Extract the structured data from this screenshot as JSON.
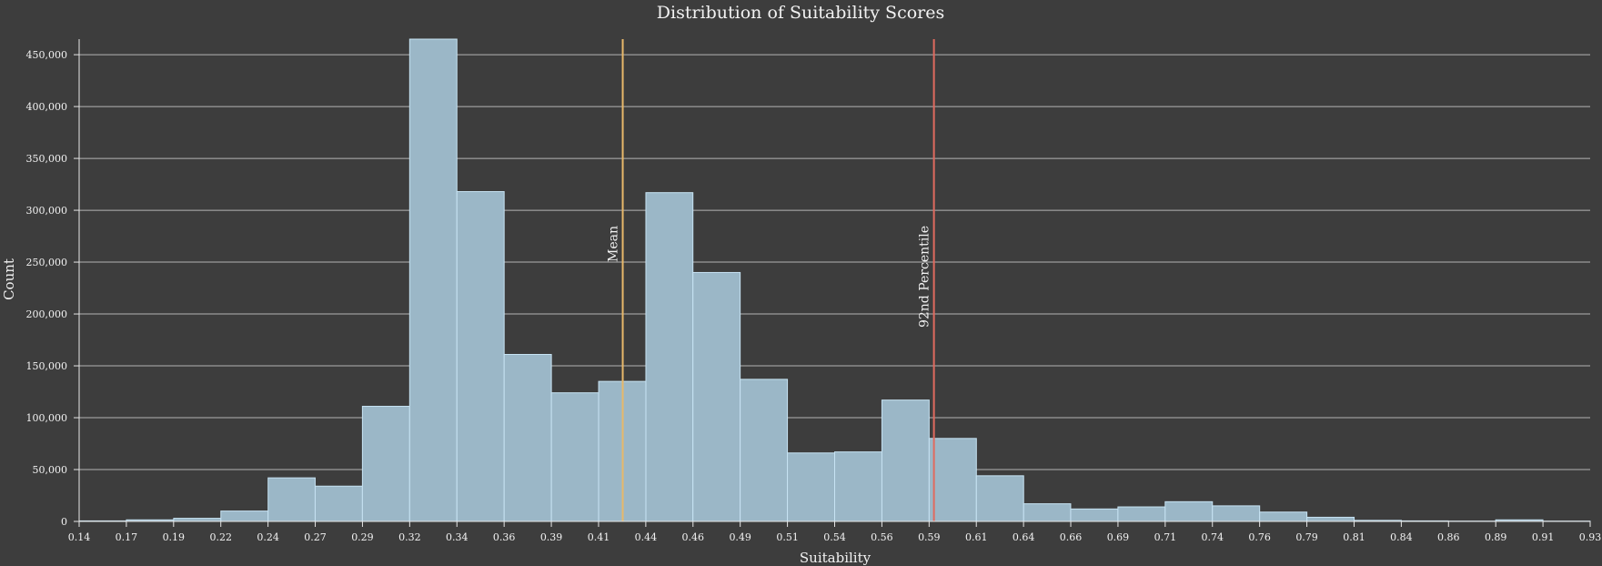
{
  "chart_data": {
    "type": "bar",
    "title": "Distribution of Suitability Scores",
    "xlabel": "Suitability",
    "ylabel": "Count",
    "xlim": [
      0.14,
      0.93
    ],
    "ylim": [
      0,
      465000
    ],
    "grid": true,
    "x_ticks": [
      "0.14",
      "0.17",
      "0.19",
      "0.22",
      "0.24",
      "0.27",
      "0.29",
      "0.32",
      "0.34",
      "0.36",
      "0.39",
      "0.41",
      "0.44",
      "0.46",
      "0.49",
      "0.51",
      "0.54",
      "0.56",
      "0.59",
      "0.61",
      "0.64",
      "0.66",
      "0.69",
      "0.71",
      "0.74",
      "0.76",
      "0.79",
      "0.81",
      "0.84",
      "0.86",
      "0.89",
      "0.91",
      "0.93"
    ],
    "y_ticks": [
      {
        "value": 0,
        "label": "0"
      },
      {
        "value": 50000,
        "label": "50,000"
      },
      {
        "value": 100000,
        "label": "100,000"
      },
      {
        "value": 150000,
        "label": "150,000"
      },
      {
        "value": 200000,
        "label": "200,000"
      },
      {
        "value": 250000,
        "label": "250,000"
      },
      {
        "value": 300000,
        "label": "300,000"
      },
      {
        "value": 350000,
        "label": "350,000"
      },
      {
        "value": 400000,
        "label": "400,000"
      },
      {
        "value": 450000,
        "label": "450,000"
      }
    ],
    "bins": [
      {
        "x0": 0.14,
        "x1": 0.1647,
        "count": 500
      },
      {
        "x0": 0.1647,
        "x1": 0.1894,
        "count": 1500
      },
      {
        "x0": 0.1894,
        "x1": 0.2141,
        "count": 3000
      },
      {
        "x0": 0.2141,
        "x1": 0.2388,
        "count": 10000
      },
      {
        "x0": 0.2388,
        "x1": 0.2634,
        "count": 42000
      },
      {
        "x0": 0.2634,
        "x1": 0.2881,
        "count": 34000
      },
      {
        "x0": 0.2881,
        "x1": 0.3128,
        "count": 111000
      },
      {
        "x0": 0.3128,
        "x1": 0.3375,
        "count": 465000
      },
      {
        "x0": 0.3375,
        "x1": 0.3622,
        "count": 318000
      },
      {
        "x0": 0.3622,
        "x1": 0.3869,
        "count": 161000
      },
      {
        "x0": 0.3869,
        "x1": 0.4116,
        "count": 124000
      },
      {
        "x0": 0.4116,
        "x1": 0.4363,
        "count": 135000
      },
      {
        "x0": 0.4363,
        "x1": 0.4609,
        "count": 317000
      },
      {
        "x0": 0.4609,
        "x1": 0.4856,
        "count": 240000
      },
      {
        "x0": 0.4856,
        "x1": 0.5103,
        "count": 137000
      },
      {
        "x0": 0.5103,
        "x1": 0.535,
        "count": 66000
      },
      {
        "x0": 0.535,
        "x1": 0.5597,
        "count": 67000
      },
      {
        "x0": 0.5597,
        "x1": 0.5844,
        "count": 117000
      },
      {
        "x0": 0.5844,
        "x1": 0.6091,
        "count": 80000
      },
      {
        "x0": 0.6091,
        "x1": 0.6338,
        "count": 44000
      },
      {
        "x0": 0.6338,
        "x1": 0.6584,
        "count": 17000
      },
      {
        "x0": 0.6584,
        "x1": 0.6831,
        "count": 12000
      },
      {
        "x0": 0.6831,
        "x1": 0.7078,
        "count": 14000
      },
      {
        "x0": 0.7078,
        "x1": 0.7325,
        "count": 19000
      },
      {
        "x0": 0.7325,
        "x1": 0.7572,
        "count": 15000
      },
      {
        "x0": 0.7572,
        "x1": 0.7819,
        "count": 9000
      },
      {
        "x0": 0.7819,
        "x1": 0.8066,
        "count": 4000
      },
      {
        "x0": 0.8066,
        "x1": 0.8313,
        "count": 1000
      },
      {
        "x0": 0.8313,
        "x1": 0.8559,
        "count": 500
      },
      {
        "x0": 0.8559,
        "x1": 0.8806,
        "count": 300
      },
      {
        "x0": 0.8806,
        "x1": 0.9053,
        "count": 1500
      },
      {
        "x0": 0.9053,
        "x1": 0.93,
        "count": 300
      }
    ],
    "reference_lines": [
      {
        "label": "Mean",
        "x": 0.4242,
        "color": "#e8b86a"
      },
      {
        "label": "92nd Percentile",
        "x": 0.5869,
        "color": "#e06a5f"
      }
    ]
  }
}
